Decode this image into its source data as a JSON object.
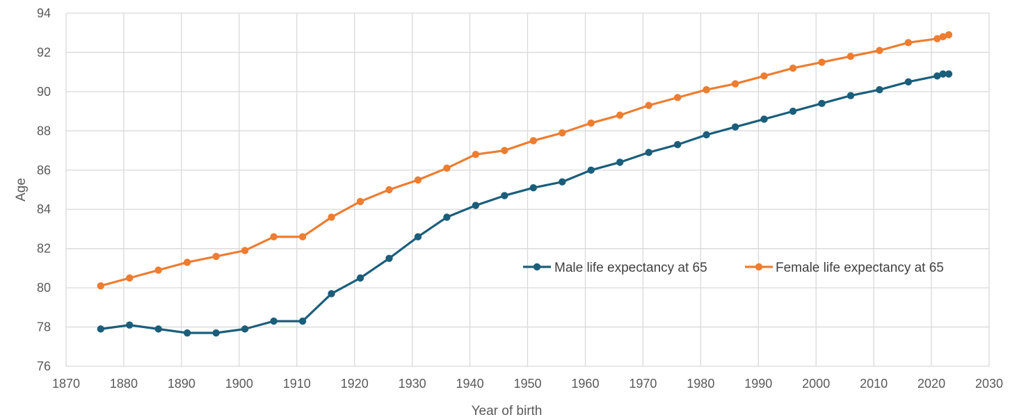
{
  "chart_data": {
    "type": "line",
    "title": "",
    "xlabel": "Year of birth",
    "ylabel": "Age",
    "xlim": [
      1870,
      2030
    ],
    "ylim": [
      76,
      94
    ],
    "x_ticks": [
      1870,
      1880,
      1890,
      1900,
      1910,
      1920,
      1930,
      1940,
      1950,
      1960,
      1970,
      1980,
      1990,
      2000,
      2010,
      2020,
      2030
    ],
    "y_ticks": [
      76,
      78,
      80,
      82,
      84,
      86,
      88,
      90,
      92,
      94
    ],
    "grid": true,
    "legend_position": "center-right",
    "series": [
      {
        "name": "Male life expectancy at 65",
        "color": "#1b5e7b",
        "x": [
          1876,
          1881,
          1886,
          1891,
          1896,
          1901,
          1906,
          1911,
          1916,
          1921,
          1926,
          1931,
          1936,
          1941,
          1946,
          1951,
          1956,
          1961,
          1966,
          1971,
          1976,
          1981,
          1986,
          1991,
          1996,
          2001,
          2006,
          2011,
          2016,
          2021,
          2022,
          2023
        ],
        "values": [
          77.9,
          78.1,
          77.9,
          77.7,
          77.7,
          77.9,
          78.3,
          78.3,
          79.7,
          80.5,
          81.5,
          82.6,
          83.6,
          84.2,
          84.7,
          85.1,
          85.4,
          86.0,
          86.4,
          86.9,
          87.3,
          87.8,
          88.2,
          88.6,
          89.0,
          89.4,
          89.8,
          90.1,
          90.5,
          90.8,
          90.9,
          90.9
        ]
      },
      {
        "name": "Female life expectancy at 65",
        "color": "#ed7d31",
        "x": [
          1876,
          1881,
          1886,
          1891,
          1896,
          1901,
          1906,
          1911,
          1916,
          1921,
          1926,
          1931,
          1936,
          1941,
          1946,
          1951,
          1956,
          1961,
          1966,
          1971,
          1976,
          1981,
          1986,
          1991,
          1996,
          2001,
          2006,
          2011,
          2016,
          2021,
          2022,
          2023
        ],
        "values": [
          80.1,
          80.5,
          80.9,
          81.3,
          81.6,
          81.9,
          82.6,
          82.6,
          83.6,
          84.4,
          85.0,
          85.5,
          86.1,
          86.8,
          87.0,
          87.5,
          87.9,
          88.4,
          88.8,
          89.3,
          89.7,
          90.1,
          90.4,
          90.8,
          91.2,
          91.5,
          91.8,
          92.1,
          92.5,
          92.7,
          92.8,
          92.9
        ]
      }
    ]
  }
}
